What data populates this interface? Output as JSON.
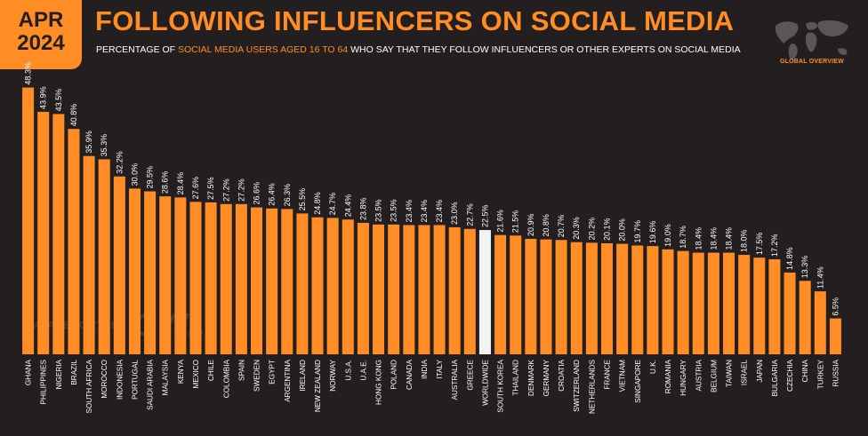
{
  "header": {
    "month": "APR",
    "year": "2024",
    "title": "FOLLOWING INFLUENCERS ON SOCIAL MEDIA",
    "subtitle_pre": "PERCENTAGE OF ",
    "subtitle_highlight": "SOCIAL MEDIA USERS AGED 16 TO 64",
    "subtitle_post": " WHO SAY THAT THEY FOLLOW INFLUENCERS OR OTHER EXPERTS ON SOCIAL MEDIA",
    "map_label": "GLOBAL OVERVIEW"
  },
  "watermark": {
    "brand1": "DATAREPORTAL",
    "brand2": "GWI."
  },
  "colors": {
    "bar": "#ff8c25",
    "highlight": "#f2f2f2",
    "background": "#231f20"
  },
  "chart_data": {
    "type": "bar",
    "ylim": [
      0,
      50
    ],
    "highlight_category": "WORLDWIDE",
    "categories": [
      "GHANA",
      "PHILIPPINES",
      "NIGERIA",
      "BRAZIL",
      "SOUTH AFRICA",
      "MOROCCO",
      "INDONESIA",
      "PORTUGAL",
      "SAUDI ARABIA",
      "MALAYSIA",
      "KENYA",
      "MEXICO",
      "CHILE",
      "COLOMBIA",
      "SPAIN",
      "SWEDEN",
      "EGYPT",
      "ARGENTINA",
      "IRELAND",
      "NEW ZEALAND",
      "NORWAY",
      "U.S.A.",
      "U.A.E.",
      "HONG KONG",
      "POLAND",
      "CANADA",
      "INDIA",
      "ITALY",
      "AUSTRALIA",
      "GREECE",
      "WORLDWIDE",
      "SOUTH KOREA",
      "THAILAND",
      "DENMARK",
      "GERMANY",
      "CROATIA",
      "SWITZERLAND",
      "NETHERLANDS",
      "FRANCE",
      "VIETNAM",
      "SINGAPORE",
      "U.K.",
      "ROMANIA",
      "HUNGARY",
      "AUSTRIA",
      "BELGIUM",
      "TAIWAN",
      "ISRAEL",
      "JAPAN",
      "BULGARIA",
      "CZECHIA",
      "CHINA",
      "TURKEY",
      "RUSSIA"
    ],
    "values": [
      48.3,
      43.9,
      43.5,
      40.8,
      35.9,
      35.3,
      32.2,
      30.0,
      29.5,
      28.6,
      28.4,
      27.6,
      27.5,
      27.2,
      27.2,
      26.6,
      26.4,
      26.3,
      25.5,
      24.8,
      24.7,
      24.4,
      23.8,
      23.5,
      23.5,
      23.4,
      23.4,
      23.4,
      23.0,
      22.7,
      22.5,
      21.6,
      21.5,
      20.9,
      20.8,
      20.7,
      20.3,
      20.2,
      20.1,
      20.0,
      19.7,
      19.6,
      19.0,
      18.7,
      18.4,
      18.4,
      18.4,
      18.0,
      17.5,
      17.2,
      14.8,
      13.3,
      11.4,
      6.5
    ],
    "value_labels": [
      "48.3%",
      "43.9%",
      "43.5%",
      "40.8%",
      "35.9%",
      "35.3%",
      "32.2%",
      "30.0%",
      "29.5%",
      "28.6%",
      "28.4%",
      "27.6%",
      "27.5%",
      "27.2%",
      "27.2%",
      "26.6%",
      "26.4%",
      "26.3%",
      "25.5%",
      "24.8%",
      "24.7%",
      "24.4%",
      "23.8%",
      "23.5%",
      "23.5%",
      "23.4%",
      "23.4%",
      "23.4%",
      "23.0%",
      "22.7%",
      "22.5%",
      "21.6%",
      "21.5%",
      "20.9%",
      "20.8%",
      "20.7%",
      "20.3%",
      "20.2%",
      "20.1%",
      "20.0%",
      "19.7%",
      "19.6%",
      "19.0%",
      "18.7%",
      "18.4%",
      "18.4%",
      "18.4%",
      "18.0%",
      "17.5%",
      "17.2%",
      "14.8%",
      "13.3%",
      "11.4%",
      "6.5%"
    ]
  }
}
